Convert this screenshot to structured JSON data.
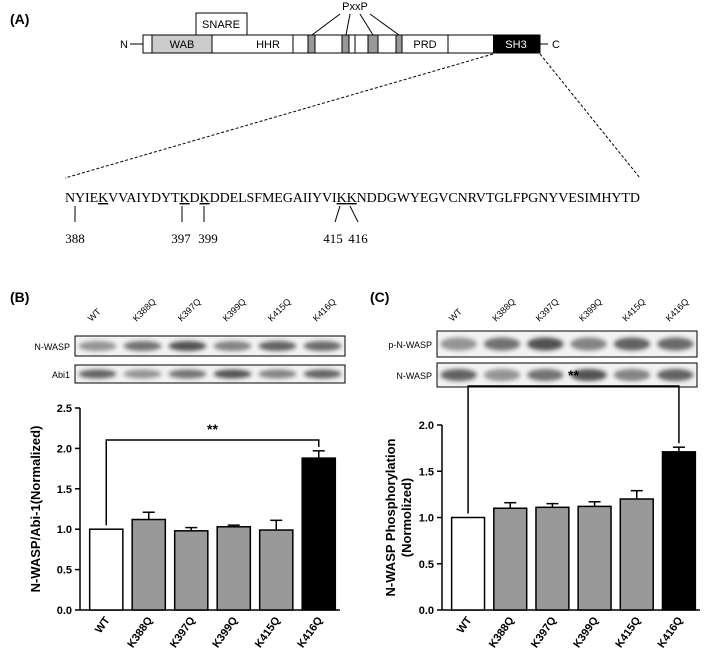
{
  "panel_a": {
    "label": "(A)",
    "n_term": "N",
    "c_term": "C",
    "domains": [
      "WAB",
      "SNARE",
      "HHR",
      "PxxP",
      "PRD",
      "SH3"
    ],
    "sequence": [
      {
        "text": "NYIE"
      },
      {
        "text": "K",
        "underline": true
      },
      {
        "text": "VVAIYDYT"
      },
      {
        "text": "K",
        "underline": true
      },
      {
        "text": "D"
      },
      {
        "text": "K",
        "underline": true
      },
      {
        "text": "DDELSFMEGAIIYVI"
      },
      {
        "text": "K",
        "underline": true
      },
      {
        "text": "K",
        "underline": true
      },
      {
        "text": "NDDGWYEGVCNRVTGLFPGNYVESIMHYTD"
      }
    ],
    "residues": [
      "388",
      "397",
      "399",
      "415",
      "416"
    ]
  },
  "panel_b": {
    "label": "(B)",
    "lanes": [
      "WT",
      "K388Q",
      "K397Q",
      "K399Q",
      "K415Q",
      "K416Q"
    ],
    "blots": [
      "N-WASP",
      "Abi1"
    ]
  },
  "panel_c": {
    "label": "(C)",
    "lanes": [
      "WT",
      "K388Q",
      "K397Q",
      "K399Q",
      "K415Q",
      "K416Q"
    ],
    "blots": [
      "p-N-WASP",
      "N-WASP"
    ]
  },
  "chart_data": [
    {
      "type": "bar",
      "ylabel": "N-WASP/Abi-1(Normalized)",
      "categories": [
        "WT",
        "K388Q",
        "K397Q",
        "K399Q",
        "K415Q",
        "K416Q"
      ],
      "values": [
        1.0,
        1.12,
        0.98,
        1.03,
        0.99,
        1.88
      ],
      "errors": [
        0,
        0.09,
        0.04,
        0.02,
        0.12,
        0.09
      ],
      "colors": [
        "#ffffff",
        "#999999",
        "#999999",
        "#999999",
        "#999999",
        "#000000"
      ],
      "ylim": [
        0,
        2.5
      ],
      "yticks": [
        {
          "value": 0,
          "label": "0.0"
        },
        0.5,
        {
          "value": 1,
          "label": "1.0"
        },
        1.5,
        {
          "value": 2,
          "label": "2.0"
        },
        2.5
      ],
      "annotation": "**"
    },
    {
      "type": "bar",
      "ylabel": [
        "N-WASP Phosphorylation",
        "(Normolized)"
      ],
      "categories": [
        "WT",
        "K388Q",
        "K397Q",
        "K399Q",
        "K415Q",
        "K416Q"
      ],
      "values": [
        1.0,
        1.1,
        1.11,
        1.12,
        1.2,
        1.71
      ],
      "errors": [
        0,
        0.06,
        0.04,
        0.05,
        0.09,
        0.05
      ],
      "colors": [
        "#ffffff",
        "#999999",
        "#999999",
        "#999999",
        "#999999",
        "#000000"
      ],
      "ylim": [
        0,
        2.0
      ],
      "yticks": [
        {
          "value": 0,
          "label": "0.0"
        },
        0.5,
        {
          "value": 1,
          "label": "1.0"
        },
        1.5,
        {
          "value": 2,
          "label": "2.0"
        }
      ],
      "annotation": "**"
    }
  ]
}
